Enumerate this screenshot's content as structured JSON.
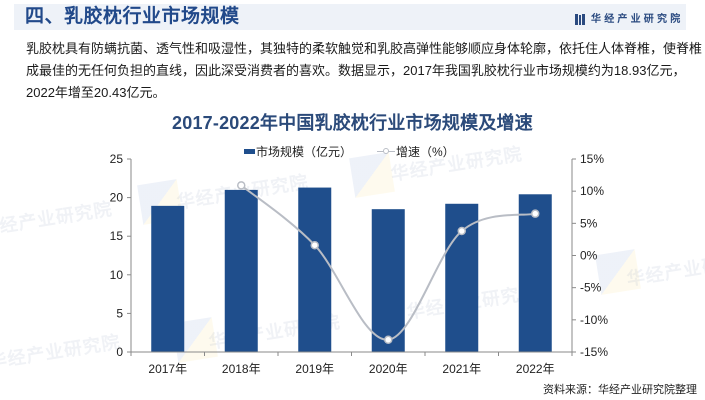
{
  "header": {
    "title": "四、乳胶枕行业市场规模",
    "brand": "华经产业研究院",
    "brand_icon": "book-icon"
  },
  "body": {
    "lines": [
      "乳胶枕具有防螨抗菌、透气性和吸湿性，其独特的柔软触觉和乳胶高弹性能够顺应身体轮廓，依托住人体脊椎，使脊椎",
      "成最佳的无任何负担的直线，因此深受消费者的喜欢。数据显示，2017年我国乳胶枕行业市场规模约为18.93亿元，",
      "2022年增至20.43亿元。"
    ]
  },
  "chart_data": {
    "type": "bar",
    "title": "2017-2022年中国乳胶枕行业市场规模及增速",
    "xlabel": "",
    "ylabel": "",
    "categories": [
      "2017年",
      "2018年",
      "2019年",
      "2020年",
      "2021年",
      "2022年"
    ],
    "series": [
      {
        "name": "市场规模（亿元）",
        "type": "bar",
        "axis": "left",
        "color": "#1f4e8c",
        "values": [
          18.93,
          21.0,
          21.3,
          18.5,
          19.2,
          20.43
        ]
      },
      {
        "name": "增速（%）",
        "type": "line",
        "axis": "right",
        "color": "#b9bdc5",
        "values": [
          null,
          10.9,
          1.6,
          -13.1,
          3.8,
          6.5
        ]
      }
    ],
    "y_left": {
      "min": 0,
      "max": 25,
      "step": 5,
      "ticks": [
        "0",
        "5",
        "10",
        "15",
        "20",
        "25"
      ]
    },
    "y_right": {
      "min": -15,
      "max": 15,
      "step": 5,
      "ticks": [
        "-15%",
        "-10%",
        "-5%",
        "0%",
        "5%",
        "10%",
        "15%"
      ]
    },
    "ylim": [
      0,
      25
    ],
    "grid": false,
    "legend_position": "top"
  },
  "watermark": "华经产业研究院",
  "source": "资料来源：华经产业研究院整理"
}
